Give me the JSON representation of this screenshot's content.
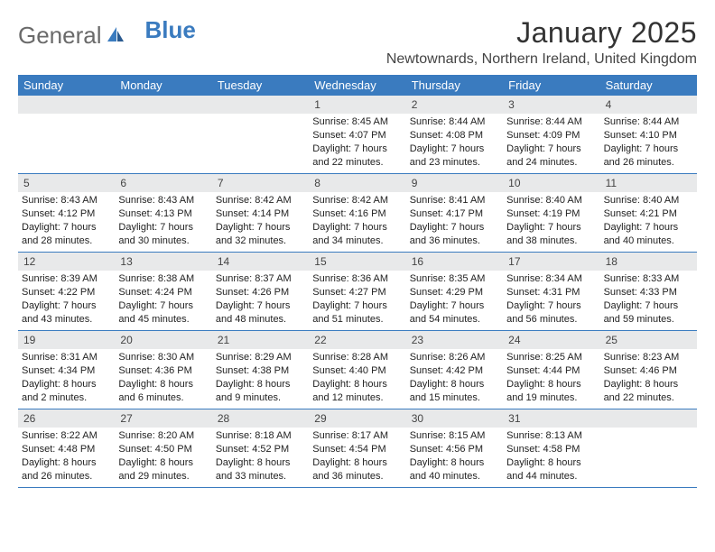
{
  "logo": {
    "text1": "General",
    "text2": "Blue"
  },
  "title": "January 2025",
  "location": "Newtownards, Northern Ireland, United Kingdom",
  "colors": {
    "header_bg": "#3a7bbf",
    "header_text": "#ffffff",
    "daynum_bg": "#e8e9ea",
    "border": "#3a7bbf",
    "body_text": "#222222"
  },
  "day_names": [
    "Sunday",
    "Monday",
    "Tuesday",
    "Wednesday",
    "Thursday",
    "Friday",
    "Saturday"
  ],
  "weeks": [
    [
      null,
      null,
      null,
      {
        "n": "1",
        "sr": "8:45 AM",
        "ss": "4:07 PM",
        "dl": "7 hours and 22 minutes."
      },
      {
        "n": "2",
        "sr": "8:44 AM",
        "ss": "4:08 PM",
        "dl": "7 hours and 23 minutes."
      },
      {
        "n": "3",
        "sr": "8:44 AM",
        "ss": "4:09 PM",
        "dl": "7 hours and 24 minutes."
      },
      {
        "n": "4",
        "sr": "8:44 AM",
        "ss": "4:10 PM",
        "dl": "7 hours and 26 minutes."
      }
    ],
    [
      {
        "n": "5",
        "sr": "8:43 AM",
        "ss": "4:12 PM",
        "dl": "7 hours and 28 minutes."
      },
      {
        "n": "6",
        "sr": "8:43 AM",
        "ss": "4:13 PM",
        "dl": "7 hours and 30 minutes."
      },
      {
        "n": "7",
        "sr": "8:42 AM",
        "ss": "4:14 PM",
        "dl": "7 hours and 32 minutes."
      },
      {
        "n": "8",
        "sr": "8:42 AM",
        "ss": "4:16 PM",
        "dl": "7 hours and 34 minutes."
      },
      {
        "n": "9",
        "sr": "8:41 AM",
        "ss": "4:17 PM",
        "dl": "7 hours and 36 minutes."
      },
      {
        "n": "10",
        "sr": "8:40 AM",
        "ss": "4:19 PM",
        "dl": "7 hours and 38 minutes."
      },
      {
        "n": "11",
        "sr": "8:40 AM",
        "ss": "4:21 PM",
        "dl": "7 hours and 40 minutes."
      }
    ],
    [
      {
        "n": "12",
        "sr": "8:39 AM",
        "ss": "4:22 PM",
        "dl": "7 hours and 43 minutes."
      },
      {
        "n": "13",
        "sr": "8:38 AM",
        "ss": "4:24 PM",
        "dl": "7 hours and 45 minutes."
      },
      {
        "n": "14",
        "sr": "8:37 AM",
        "ss": "4:26 PM",
        "dl": "7 hours and 48 minutes."
      },
      {
        "n": "15",
        "sr": "8:36 AM",
        "ss": "4:27 PM",
        "dl": "7 hours and 51 minutes."
      },
      {
        "n": "16",
        "sr": "8:35 AM",
        "ss": "4:29 PM",
        "dl": "7 hours and 54 minutes."
      },
      {
        "n": "17",
        "sr": "8:34 AM",
        "ss": "4:31 PM",
        "dl": "7 hours and 56 minutes."
      },
      {
        "n": "18",
        "sr": "8:33 AM",
        "ss": "4:33 PM",
        "dl": "7 hours and 59 minutes."
      }
    ],
    [
      {
        "n": "19",
        "sr": "8:31 AM",
        "ss": "4:34 PM",
        "dl": "8 hours and 2 minutes."
      },
      {
        "n": "20",
        "sr": "8:30 AM",
        "ss": "4:36 PM",
        "dl": "8 hours and 6 minutes."
      },
      {
        "n": "21",
        "sr": "8:29 AM",
        "ss": "4:38 PM",
        "dl": "8 hours and 9 minutes."
      },
      {
        "n": "22",
        "sr": "8:28 AM",
        "ss": "4:40 PM",
        "dl": "8 hours and 12 minutes."
      },
      {
        "n": "23",
        "sr": "8:26 AM",
        "ss": "4:42 PM",
        "dl": "8 hours and 15 minutes."
      },
      {
        "n": "24",
        "sr": "8:25 AM",
        "ss": "4:44 PM",
        "dl": "8 hours and 19 minutes."
      },
      {
        "n": "25",
        "sr": "8:23 AM",
        "ss": "4:46 PM",
        "dl": "8 hours and 22 minutes."
      }
    ],
    [
      {
        "n": "26",
        "sr": "8:22 AM",
        "ss": "4:48 PM",
        "dl": "8 hours and 26 minutes."
      },
      {
        "n": "27",
        "sr": "8:20 AM",
        "ss": "4:50 PM",
        "dl": "8 hours and 29 minutes."
      },
      {
        "n": "28",
        "sr": "8:18 AM",
        "ss": "4:52 PM",
        "dl": "8 hours and 33 minutes."
      },
      {
        "n": "29",
        "sr": "8:17 AM",
        "ss": "4:54 PM",
        "dl": "8 hours and 36 minutes."
      },
      {
        "n": "30",
        "sr": "8:15 AM",
        "ss": "4:56 PM",
        "dl": "8 hours and 40 minutes."
      },
      {
        "n": "31",
        "sr": "8:13 AM",
        "ss": "4:58 PM",
        "dl": "8 hours and 44 minutes."
      },
      null
    ]
  ],
  "labels": {
    "sunrise": "Sunrise:",
    "sunset": "Sunset:",
    "daylight": "Daylight:"
  }
}
